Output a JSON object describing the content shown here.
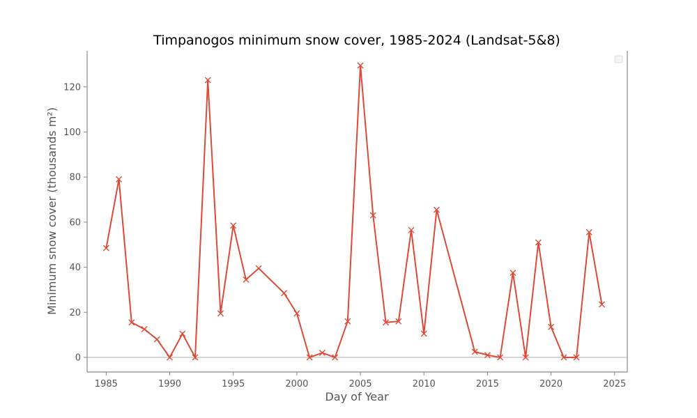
{
  "chart_data": {
    "type": "line",
    "title": "Timpanogos minimum snow cover, 1985-2024 (Landsat-5&8)",
    "xlabel": "Day of Year",
    "ylabel": "Minimum snow cover (thousands m²)",
    "xlim": [
      1983.5,
      2026
    ],
    "ylim": [
      -6.5,
      136
    ],
    "xticks": [
      1985,
      1990,
      1995,
      2000,
      2005,
      2010,
      2015,
      2020,
      2025
    ],
    "yticks": [
      0,
      20,
      40,
      60,
      80,
      100,
      120
    ],
    "zero_line": true,
    "grid": false,
    "legend": "top-right (empty)",
    "marker": "x",
    "line_color": "#dc4a38",
    "zero_line_color": "#c8c8c8",
    "axis_color": "#888888",
    "series": [
      {
        "x": [
          1985,
          1986,
          1987,
          1988,
          1989,
          1990,
          1991,
          1992,
          1993,
          1994,
          1995,
          1996,
          1997,
          1999,
          2000,
          2001,
          2002,
          2003,
          2004,
          2005,
          2006,
          2007,
          2008,
          2009,
          2010,
          2011,
          2014,
          2015,
          2016,
          2017,
          2018,
          2019,
          2020,
          2021,
          2022,
          2023,
          2024
        ],
        "values": [
          48.5,
          79,
          15.5,
          12.5,
          8,
          0,
          10.5,
          0,
          123,
          19.5,
          58.5,
          34.5,
          39.5,
          28.5,
          19.5,
          0,
          2,
          0,
          16,
          129.5,
          63,
          15.5,
          16,
          56.5,
          10.5,
          65.5,
          2.5,
          1,
          0,
          37.5,
          0,
          51,
          13.5,
          0,
          0,
          55.5,
          23.5
        ]
      }
    ]
  }
}
